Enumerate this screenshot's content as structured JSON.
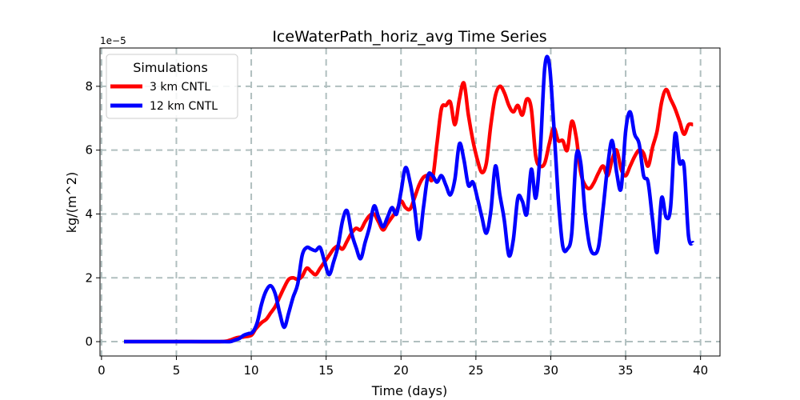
{
  "chart_data": {
    "type": "line",
    "title": "IceWaterPath_horiz_avg Time Series",
    "xlabel": "Time (days)",
    "ylabel": "kg/(m^2)",
    "y_offset_label": "1e−5",
    "xlim": [
      -0.1,
      41.3
    ],
    "ylim": [
      -0.45,
      9.2
    ],
    "xticks": [
      0,
      5,
      10,
      15,
      20,
      25,
      30,
      35,
      40
    ],
    "yticks": [
      0,
      2,
      4,
      6,
      8
    ],
    "grid": true,
    "legend": {
      "title": "Simulations",
      "position": "upper-left"
    },
    "series": [
      {
        "name": "3 km CNTL",
        "color": "#ff0000",
        "points": [
          [
            1.5,
            0
          ],
          [
            4,
            0
          ],
          [
            6,
            0
          ],
          [
            8,
            0
          ],
          [
            8.6,
            0.05
          ],
          [
            9,
            0.12
          ],
          [
            9.5,
            0.15
          ],
          [
            10,
            0.2
          ],
          [
            10.3,
            0.4
          ],
          [
            10.7,
            0.6
          ],
          [
            11,
            0.7
          ],
          [
            11.3,
            0.9
          ],
          [
            11.6,
            1.1
          ],
          [
            11.9,
            1.4
          ],
          [
            12.2,
            1.7
          ],
          [
            12.5,
            1.95
          ],
          [
            12.8,
            2.0
          ],
          [
            13.1,
            1.95
          ],
          [
            13.4,
            2.05
          ],
          [
            13.7,
            2.3
          ],
          [
            14,
            2.2
          ],
          [
            14.3,
            2.1
          ],
          [
            14.6,
            2.3
          ],
          [
            14.9,
            2.5
          ],
          [
            15.2,
            2.7
          ],
          [
            15.5,
            2.9
          ],
          [
            15.8,
            3.0
          ],
          [
            16.1,
            2.9
          ],
          [
            16.4,
            3.15
          ],
          [
            16.7,
            3.4
          ],
          [
            17,
            3.55
          ],
          [
            17.3,
            3.5
          ],
          [
            17.6,
            3.75
          ],
          [
            17.9,
            3.95
          ],
          [
            18.2,
            4.0
          ],
          [
            18.5,
            3.75
          ],
          [
            18.8,
            3.5
          ],
          [
            19.1,
            3.7
          ],
          [
            19.4,
            3.9
          ],
          [
            19.7,
            4.1
          ],
          [
            20,
            4.4
          ],
          [
            20.3,
            4.2
          ],
          [
            20.6,
            4.15
          ],
          [
            20.9,
            4.5
          ],
          [
            21.2,
            4.9
          ],
          [
            21.5,
            5.15
          ],
          [
            21.8,
            5.2
          ],
          [
            22.1,
            5.1
          ],
          [
            22.4,
            6.2
          ],
          [
            22.7,
            7.3
          ],
          [
            23,
            7.4
          ],
          [
            23.3,
            7.5
          ],
          [
            23.6,
            6.8
          ],
          [
            23.9,
            7.6
          ],
          [
            24.2,
            8.1
          ],
          [
            24.5,
            7.1
          ],
          [
            24.8,
            6.3
          ],
          [
            25.1,
            5.7
          ],
          [
            25.4,
            5.3
          ],
          [
            25.7,
            5.6
          ],
          [
            26,
            6.8
          ],
          [
            26.3,
            7.7
          ],
          [
            26.6,
            8.0
          ],
          [
            26.9,
            7.8
          ],
          [
            27.2,
            7.4
          ],
          [
            27.5,
            7.2
          ],
          [
            27.8,
            7.4
          ],
          [
            28.1,
            7.1
          ],
          [
            28.4,
            7.6
          ],
          [
            28.7,
            7.3
          ],
          [
            29,
            5.8
          ],
          [
            29.3,
            5.5
          ],
          [
            29.6,
            5.6
          ],
          [
            29.9,
            6.2
          ],
          [
            30.2,
            6.7
          ],
          [
            30.5,
            6.3
          ],
          [
            30.8,
            6.3
          ],
          [
            31.1,
            6.0
          ],
          [
            31.4,
            6.9
          ],
          [
            31.7,
            6.4
          ],
          [
            32,
            5.3
          ],
          [
            32.3,
            4.9
          ],
          [
            32.6,
            4.8
          ],
          [
            32.9,
            5.0
          ],
          [
            33.2,
            5.3
          ],
          [
            33.5,
            5.5
          ],
          [
            33.8,
            5.2
          ],
          [
            34.1,
            5.7
          ],
          [
            34.4,
            6.0
          ],
          [
            34.7,
            5.4
          ],
          [
            35,
            5.2
          ],
          [
            35.3,
            5.5
          ],
          [
            35.6,
            5.8
          ],
          [
            35.9,
            6.0
          ],
          [
            36.2,
            5.9
          ],
          [
            36.5,
            5.5
          ],
          [
            36.8,
            6.1
          ],
          [
            37.1,
            6.6
          ],
          [
            37.4,
            7.5
          ],
          [
            37.7,
            7.9
          ],
          [
            38,
            7.6
          ],
          [
            38.3,
            7.3
          ],
          [
            38.6,
            6.9
          ],
          [
            38.9,
            6.5
          ],
          [
            39.2,
            6.8
          ],
          [
            39.5,
            6.8
          ]
        ]
      },
      {
        "name": "12 km CNTL",
        "color": "#0000ff",
        "points": [
          [
            1.5,
            0
          ],
          [
            4,
            0
          ],
          [
            6,
            0
          ],
          [
            8,
            0
          ],
          [
            8.6,
            0
          ],
          [
            8.9,
            0.05
          ],
          [
            9.2,
            0.1
          ],
          [
            9.5,
            0.2
          ],
          [
            9.8,
            0.25
          ],
          [
            10.1,
            0.3
          ],
          [
            10.4,
            0.6
          ],
          [
            10.7,
            1.2
          ],
          [
            11,
            1.6
          ],
          [
            11.3,
            1.75
          ],
          [
            11.6,
            1.5
          ],
          [
            11.9,
            0.9
          ],
          [
            12.2,
            0.45
          ],
          [
            12.5,
            0.9
          ],
          [
            12.8,
            1.4
          ],
          [
            13.1,
            1.8
          ],
          [
            13.4,
            2.7
          ],
          [
            13.7,
            2.95
          ],
          [
            14,
            2.9
          ],
          [
            14.3,
            2.85
          ],
          [
            14.6,
            2.95
          ],
          [
            14.9,
            2.5
          ],
          [
            15.2,
            2.1
          ],
          [
            15.5,
            2.5
          ],
          [
            15.8,
            3.0
          ],
          [
            16.1,
            3.8
          ],
          [
            16.4,
            4.1
          ],
          [
            16.7,
            3.4
          ],
          [
            17,
            2.95
          ],
          [
            17.3,
            2.6
          ],
          [
            17.6,
            3.1
          ],
          [
            17.9,
            3.6
          ],
          [
            18.2,
            4.25
          ],
          [
            18.5,
            3.9
          ],
          [
            18.8,
            3.6
          ],
          [
            19.1,
            3.9
          ],
          [
            19.4,
            4.2
          ],
          [
            19.7,
            4.0
          ],
          [
            20,
            4.7
          ],
          [
            20.3,
            5.45
          ],
          [
            20.6,
            5.0
          ],
          [
            20.9,
            4.2
          ],
          [
            21.2,
            3.2
          ],
          [
            21.5,
            4.2
          ],
          [
            21.8,
            5.2
          ],
          [
            22.1,
            5.2
          ],
          [
            22.4,
            5.0
          ],
          [
            22.7,
            5.2
          ],
          [
            23,
            4.9
          ],
          [
            23.3,
            4.6
          ],
          [
            23.6,
            5.1
          ],
          [
            23.9,
            6.2
          ],
          [
            24.2,
            5.7
          ],
          [
            24.5,
            4.9
          ],
          [
            24.8,
            5.0
          ],
          [
            25.1,
            4.5
          ],
          [
            25.4,
            3.9
          ],
          [
            25.7,
            3.4
          ],
          [
            26,
            4.1
          ],
          [
            26.3,
            5.5
          ],
          [
            26.6,
            4.6
          ],
          [
            26.9,
            3.8
          ],
          [
            27.2,
            2.7
          ],
          [
            27.5,
            3.2
          ],
          [
            27.8,
            4.5
          ],
          [
            28.1,
            4.4
          ],
          [
            28.4,
            4.0
          ],
          [
            28.7,
            5.4
          ],
          [
            29,
            4.5
          ],
          [
            29.3,
            6.0
          ],
          [
            29.6,
            8.6
          ],
          [
            29.9,
            8.7
          ],
          [
            30.2,
            6.8
          ],
          [
            30.5,
            4.5
          ],
          [
            30.8,
            3.0
          ],
          [
            31.1,
            2.9
          ],
          [
            31.4,
            3.4
          ],
          [
            31.7,
            5.8
          ],
          [
            32,
            5.6
          ],
          [
            32.3,
            4.0
          ],
          [
            32.6,
            3.0
          ],
          [
            32.9,
            2.75
          ],
          [
            33.2,
            3.0
          ],
          [
            33.5,
            4.2
          ],
          [
            33.8,
            5.5
          ],
          [
            34.1,
            6.3
          ],
          [
            34.4,
            5.3
          ],
          [
            34.7,
            4.8
          ],
          [
            35,
            6.6
          ],
          [
            35.3,
            7.2
          ],
          [
            35.6,
            6.5
          ],
          [
            35.9,
            6.2
          ],
          [
            36.2,
            5.2
          ],
          [
            36.5,
            5.0
          ],
          [
            36.8,
            3.8
          ],
          [
            37.1,
            2.8
          ],
          [
            37.4,
            4.5
          ],
          [
            37.7,
            3.9
          ],
          [
            38,
            4.2
          ],
          [
            38.3,
            6.5
          ],
          [
            38.6,
            5.6
          ],
          [
            38.9,
            5.5
          ],
          [
            39.2,
            3.3
          ],
          [
            39.5,
            3.1
          ]
        ]
      }
    ]
  }
}
